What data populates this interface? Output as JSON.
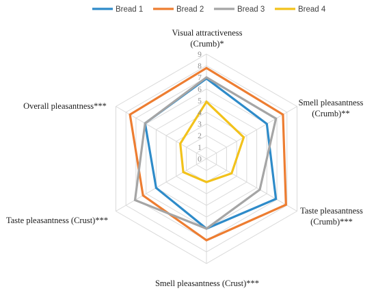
{
  "chart_data": {
    "type": "radar",
    "axes": [
      [
        "Visual attractiveness",
        "(Crumb)*"
      ],
      [
        "Smell pleasantness",
        "(Crumb)**"
      ],
      [
        "Taste pleasantness",
        "(Crumb)***"
      ],
      [
        "Smell pleasantness (Crust)***"
      ],
      [
        "Taste pleasantness (Crust)***"
      ],
      [
        "Overall pleasantness***"
      ]
    ],
    "rlim": [
      0,
      9
    ],
    "ticks": [
      "0",
      "1",
      "2",
      "3",
      "4",
      "5",
      "6",
      "7",
      "8",
      "9"
    ],
    "grid": true,
    "legend_position": "top",
    "series": [
      {
        "name": "Bread 1",
        "color": "#2E8BC9",
        "values": [
          6.9,
          6.0,
          6.9,
          6.0,
          5.0,
          6.1
        ]
      },
      {
        "name": "Bread 2",
        "color": "#ED7D31",
        "values": [
          7.8,
          7.6,
          7.9,
          7.0,
          6.3,
          7.6
        ]
      },
      {
        "name": "Bread 3",
        "color": "#A5A5A5",
        "values": [
          7.0,
          6.9,
          5.3,
          6.0,
          7.1,
          6.1
        ]
      },
      {
        "name": "Bread 4",
        "color": "#F2C21B",
        "values": [
          4.9,
          3.7,
          2.5,
          2.0,
          2.3,
          2.6
        ]
      }
    ]
  }
}
